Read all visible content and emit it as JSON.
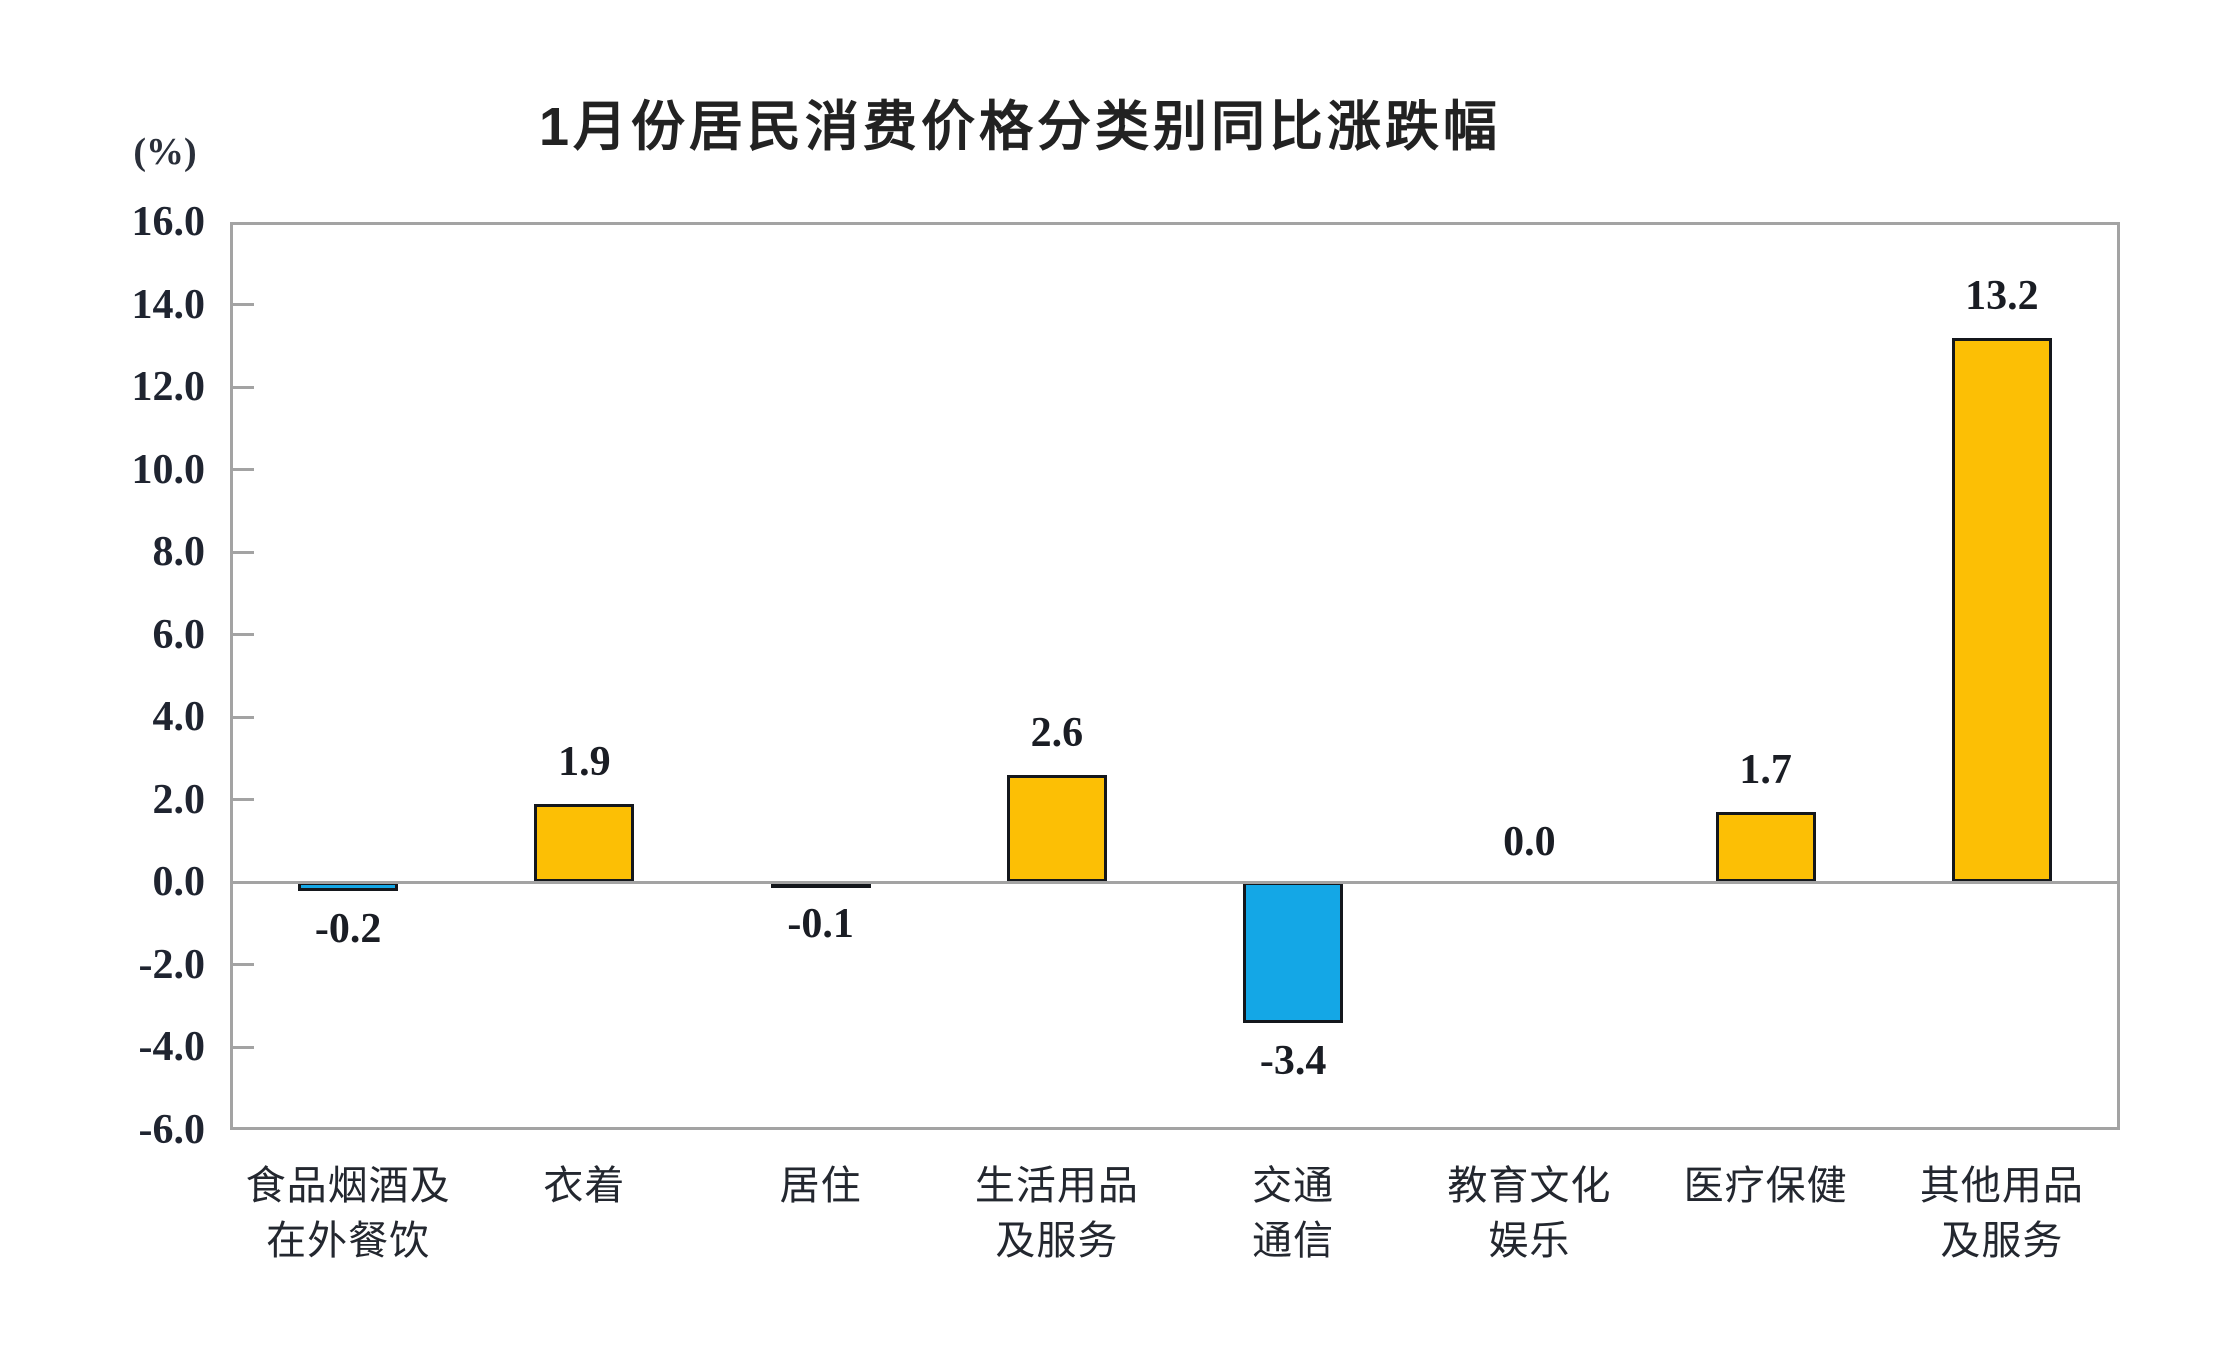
{
  "chart_data": {
    "type": "bar",
    "title": "1月份居民消费价格分类别同比涨跌幅",
    "unit_label": "(%)",
    "categories": [
      "食品烟酒及\n在外餐饮",
      "衣着",
      "居住",
      "生活用品\n及服务",
      "交通\n通信",
      "教育文化\n娱乐",
      "医疗保健",
      "其他用品\n及服务"
    ],
    "values": [
      -0.2,
      1.9,
      -0.1,
      2.6,
      -3.4,
      0.0,
      1.7,
      13.2
    ],
    "value_labels": [
      "-0.2",
      "1.9",
      "-0.1",
      "2.6",
      "-3.4",
      "0.0",
      "1.7",
      "13.2"
    ],
    "ylim": [
      -6.0,
      16.0
    ],
    "ytick_step": 2.0,
    "yticks": [
      {
        "value": 16.0,
        "label": "16.0"
      },
      {
        "value": 14.0,
        "label": "14.0"
      },
      {
        "value": 12.0,
        "label": "12.0"
      },
      {
        "value": 10.0,
        "label": "10.0"
      },
      {
        "value": 8.0,
        "label": "8.0"
      },
      {
        "value": 6.0,
        "label": "6.0"
      },
      {
        "value": 4.0,
        "label": "4.0"
      },
      {
        "value": 2.0,
        "label": "2.0"
      },
      {
        "value": 0.0,
        "label": "0.0"
      },
      {
        "value": -2.0,
        "label": "-2.0"
      },
      {
        "value": -4.0,
        "label": "-4.0"
      },
      {
        "value": -6.0,
        "label": "-6.0"
      }
    ],
    "colors": {
      "positive_bar": "#FCBF05",
      "negative_bar": "#14A7E6",
      "bar_border": "#14171C",
      "axis": "#A3A3A3",
      "text": "#1F1F1F"
    },
    "grid": false,
    "legend": null
  }
}
